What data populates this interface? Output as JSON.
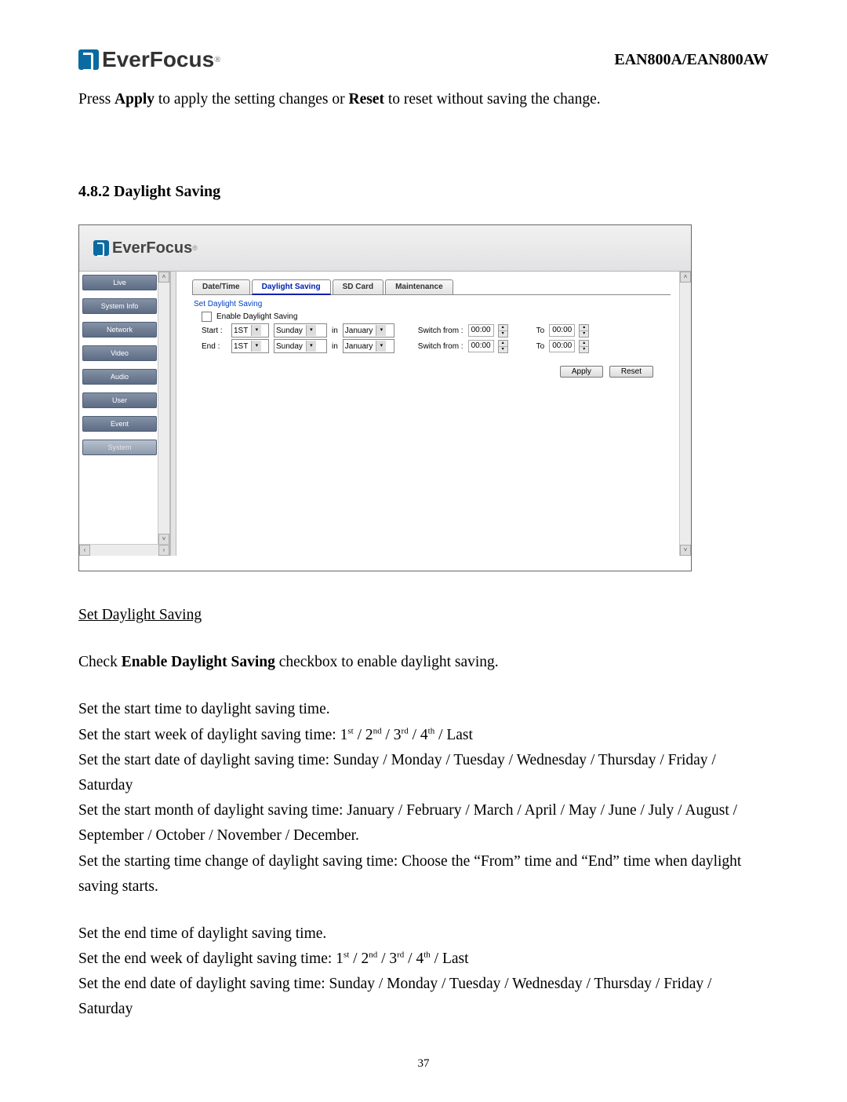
{
  "header": {
    "brand": "EverFocus",
    "model": "EAN800A/EAN800AW"
  },
  "intro": {
    "t1": "Press ",
    "b1": "Apply",
    "t2": " to apply the setting changes or ",
    "b2": "Reset",
    "t3": " to reset without saving the change."
  },
  "section_title": "4.8.2 Daylight Saving",
  "screenshot": {
    "brand": "EverFocus",
    "sidebar": [
      "Live",
      "System Info",
      "Network",
      "Video",
      "Audio",
      "User",
      "Event",
      "System"
    ],
    "sidebar_selected_index": 7,
    "tabs": [
      "Date/Time",
      "Daylight Saving",
      "SD Card",
      "Maintenance"
    ],
    "tabs_active_index": 1,
    "legend": "Set Daylight Saving",
    "enable_label": "Enable Daylight Saving",
    "rows": [
      {
        "label": "Start :",
        "week": "1ST",
        "day": "Sunday",
        "in": "in",
        "month": "January",
        "switch": "Switch from :",
        "from": "00:00",
        "to_label": "To",
        "to": "00:00"
      },
      {
        "label": "End :",
        "week": "1ST",
        "day": "Sunday",
        "in": "in",
        "month": "January",
        "switch": "Switch from :",
        "from": "00:00",
        "to_label": "To",
        "to": "00:00"
      }
    ],
    "buttons": {
      "apply": "Apply",
      "reset": "Reset"
    },
    "colors": {
      "sidebar_bg": "#5d6d85",
      "tab_active": "#0020b0",
      "legend": "#0040c0",
      "top_bg": "#e2e2e4"
    }
  },
  "body": {
    "h1": "Set Daylight Saving",
    "p1a": "Check ",
    "p1b": "Enable Daylight Saving",
    "p1c": " checkbox to enable daylight saving.",
    "p2": "Set the start time to daylight saving time.",
    "p3a": "Set the start week of daylight saving time: 1",
    "p3b": " / 2",
    "p3c": " / 3",
    "p3d": " / 4",
    "p3e": " / Last",
    "p4": "Set the start date of daylight saving time: Sunday / Monday / Tuesday / Wednesday / Thursday / Friday / Saturday",
    "p5": "Set the start month of daylight saving time: January / February / March / April / May / June / July / August / September / October / November / December.",
    "p6": "Set the starting time change of daylight saving time: Choose the “From” time and “End” time when daylight saving starts.",
    "p7": "Set the end time of daylight saving time.",
    "p8a": "Set the end week of daylight saving time: 1",
    "p8b": " / 2",
    "p8c": " / 3",
    "p8d": " / 4",
    "p8e": " / Last",
    "p9": "Set the end date of daylight saving time:  Sunday / Monday / Tuesday / Wednesday / Thursday / Friday / Saturday",
    "sup": {
      "st": "st",
      "nd": "nd",
      "rd": "rd",
      "th": "th"
    }
  },
  "page_number": "37"
}
